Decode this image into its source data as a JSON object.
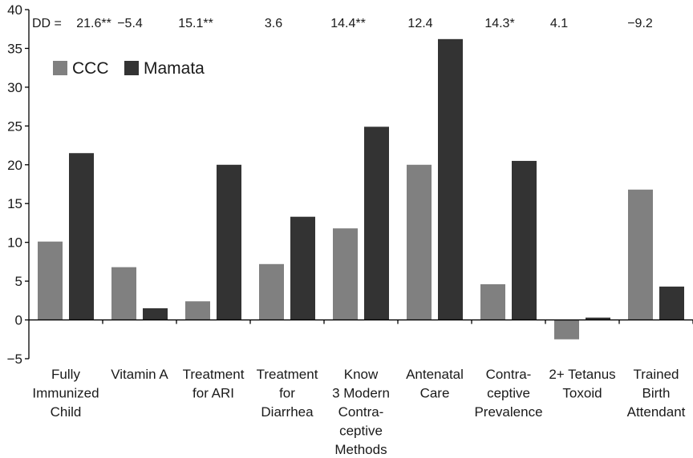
{
  "chart_data": {
    "type": "bar",
    "title": "",
    "xlabel": "",
    "ylabel": "",
    "ylim": [
      -5,
      40
    ],
    "yticks": [
      -5,
      0,
      5,
      10,
      15,
      20,
      25,
      30,
      35,
      40
    ],
    "ytick_labels": [
      "−5",
      "0",
      "5",
      "10",
      "15",
      "20",
      "25",
      "30",
      "35",
      "40"
    ],
    "grid": false,
    "legend_position": "top-left",
    "categories": [
      [
        "Fully",
        "Immunized",
        "Child"
      ],
      [
        "Vitamin A"
      ],
      [
        "Treatment",
        "for ARI"
      ],
      [
        "Treatment",
        "for",
        "Diarrhea"
      ],
      [
        "Know",
        "3 Modern",
        "Contra-",
        "ceptive",
        "Methods"
      ],
      [
        "Antenatal",
        "Care"
      ],
      [
        "Contra-",
        "ceptive",
        "Prevalence"
      ],
      [
        "2+ Tetanus",
        "Toxoid"
      ],
      [
        "Trained",
        "Birth",
        "Attendant"
      ]
    ],
    "series": [
      {
        "name": "CCC",
        "color": "#808080",
        "values": [
          10.1,
          6.8,
          2.4,
          7.2,
          11.8,
          20.0,
          4.6,
          -2.5,
          16.8
        ]
      },
      {
        "name": "Mamata",
        "color": "#333333",
        "values": [
          21.5,
          1.5,
          20.0,
          13.3,
          24.9,
          36.2,
          20.5,
          0.3,
          4.3
        ]
      }
    ],
    "annotations": {
      "dd_prefix": "DD = ",
      "dd_values": [
        "21.6**",
        "−5.4",
        "15.1**",
        "3.6",
        "14.4**",
        "12.4",
        "14.3*",
        "4.1",
        "−9.2"
      ]
    }
  }
}
